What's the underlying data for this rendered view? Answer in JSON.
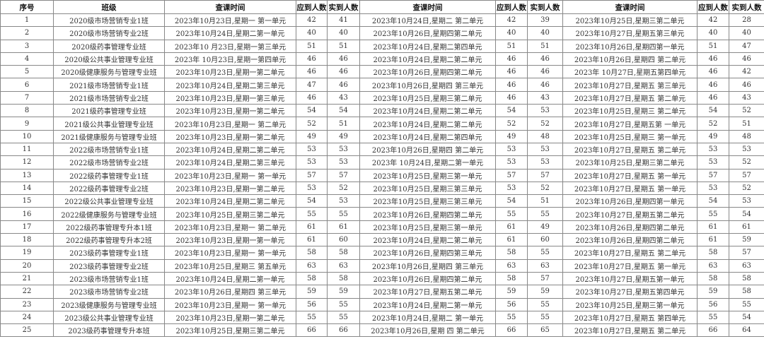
{
  "table": {
    "header": [
      "序号",
      "班级",
      "查课时间",
      "应到人数",
      "实到人数",
      "查课时间",
      "应到人数",
      "实到人数",
      "查课时间",
      "应到人数",
      "实到人数"
    ],
    "rows": [
      [
        1,
        "2020级市场营销专业1班",
        "2023年10月23日,星期一 第一单元",
        42,
        41,
        "2023年10月24日,星期二 第二单元",
        42,
        39,
        "2023年10月25日,星期三第二单元",
        42,
        28
      ],
      [
        2,
        "2020级市场营销专业2班",
        "2023年10月24日,星期二第一单元",
        40,
        40,
        "2023年10月26日,星期四第二单元",
        40,
        40,
        "2023年10月27日,星期五第三单元",
        40,
        40
      ],
      [
        3,
        "2020级药事管理专业班",
        "2023年10 月23日,星期一第三单元",
        51,
        51,
        "2023年10月24日,星期二第四单元",
        51,
        51,
        "2023年10月26日,星期四第一单元",
        51,
        47
      ],
      [
        4,
        "2020级公共事业管理专业班",
        "2023年 10月23日,星期一第四单元",
        46,
        46,
        "2023年10月24日,星期二第二单元",
        46,
        46,
        "2023年10月26日,星期四 第二单元",
        46,
        46
      ],
      [
        5,
        "2020级健康服务与管理专业班",
        "2023年10月23日,星期一第二单元",
        46,
        46,
        "2023年10月26日,星期四第二单元",
        46,
        46,
        "2023年 10月27日,星期五第四单元",
        46,
        42
      ],
      [
        6,
        "2021级市场营销专业1班",
        "2023年10月24日,星期二第三单元",
        47,
        46,
        "2023年10月26日,星期四 第三单元",
        46,
        46,
        "2023年10月27日,星期五 第三单元",
        46,
        46
      ],
      [
        7,
        "2021级市场营销专业2班",
        "2023年10月23日,星期一第三单元",
        46,
        43,
        "2023年10月25日,星期三第二单元",
        46,
        43,
        "2023年10月27日,星期五 第二单元",
        46,
        43
      ],
      [
        8,
        "2021级药事管理专业班",
        "2023年10月23日,星期一第二单元",
        54,
        54,
        "2023年10月24日,星期二第二单元",
        54,
        53,
        "2023年10月25日,星期三 第二单元",
        54,
        52
      ],
      [
        9,
        "2021级公共事业管理专业班",
        "2023年10月23日,星期一 第二单元",
        52,
        51,
        "2023年10月24日,星期二第二单元",
        52,
        52,
        "2023年10月27日,星期五第 一单元",
        52,
        51
      ],
      [
        10,
        "2021级健康服务与管理专业班",
        "2023年10月23日,星期一第二单元",
        49,
        49,
        "2023年10月24日,星期二第四单元",
        49,
        48,
        "2023年10月25日,星期三 第一单元",
        49,
        48
      ],
      [
        11,
        "2022级市场营销专业1班",
        "2023年10月24日,星期二第二单元",
        53,
        53,
        "2023年10月26日,星期四 第二单元",
        53,
        53,
        "2023年10月27日,星期五 第二单元",
        53,
        53
      ],
      [
        12,
        "2022级市场营销专业2班",
        "2023年10月24日,星期二第三单元",
        53,
        53,
        "2023年 10月24日,星期二第一单元",
        53,
        53,
        "2023年10月25日,星期三第二单元",
        53,
        52
      ],
      [
        13,
        "2022级药事管理专业1班",
        "2023年10月23日,星期一 第一单元",
        57,
        57,
        "2023年10月25日,星期三第一单元",
        57,
        57,
        "2023年10月27日,星期五 第一单元",
        57,
        57
      ],
      [
        14,
        "2022级药事管理专业2班",
        "2023年10月23日,星期一第二单元",
        53,
        52,
        "2023年10月25日,星期三第三单元",
        53,
        52,
        "2023年10月27日,星期五 第一单元",
        53,
        52
      ],
      [
        15,
        "2022级公共事业管理专业班",
        "2023年10月24日,星期二第二单元",
        54,
        53,
        "2023年10月25日,星期三第三单元",
        54,
        51,
        "2023年10月26日,星期四第一单元",
        54,
        53
      ],
      [
        16,
        "2022级健康服务与管理专业班",
        "2023年10月25日,星期三第二单元",
        55,
        55,
        "2023年10月26日,星期四第二单元",
        55,
        55,
        "2023年10月27日,星期五第二单元",
        55,
        54
      ],
      [
        17,
        "2022级药事管理专升本1班",
        "2023年10月23日,星期一 第二单元",
        61,
        61,
        "2023年10月25日,星期三第一单元",
        61,
        49,
        "2023年10月26日,星期四第二单元",
        61,
        61
      ],
      [
        18,
        "2022级药事管理专升本2班",
        "2023年10月23日,星期一第一单元",
        61,
        60,
        "2023年10月24日,星期二第二单元",
        61,
        60,
        "2023年10月26日,星期四第二单元",
        61,
        59
      ],
      [
        19,
        "2023级药事管理专业1班",
        "2023年10月23日,星期一 第一单元",
        58,
        58,
        "2023年10月26日,星期四第三单元",
        58,
        55,
        "2023年10月27日,星期五 第二单元",
        58,
        57
      ],
      [
        20,
        "2023级药事管理专业2班",
        "2023年10月25日,星期三 第五单元",
        63,
        63,
        "2023年10月26日,星期四 第三单元",
        63,
        63,
        "2023年10月27日,星期五 第一单元",
        63,
        63
      ],
      [
        21,
        "2023级市场营销专业1班",
        "2023年10月24日,星期二第一单元",
        58,
        58,
        "2023年10月26日,星期四第二单元",
        58,
        57,
        "2023年10月27日,星期五第一单元",
        58,
        58
      ],
      [
        22,
        "2023级市场营销专业2班",
        "2023年10月26日,星期四 第三单元",
        59,
        59,
        "2023年10月27日,星期五第二单元",
        59,
        59,
        "2023年10月27日,星期五第四单元",
        59,
        58
      ],
      [
        23,
        "2023级健康服务与管理专业班",
        "2023年10月23日,星期一 第一单元",
        56,
        55,
        "2023年10月24日,星期二第一单元",
        56,
        55,
        "2023年10月25日,星期三第一单元",
        56,
        55
      ],
      [
        24,
        "2023级公共事业管理专业班",
        "2023年10月23日,星期一第二单元",
        55,
        55,
        "2023年10月24日,星期二 第一单元",
        55,
        55,
        "2023年10月27日,星期五 第四单元",
        55,
        54
      ],
      [
        25,
        "2023级药事管理专升本班",
        "2023年10月25日,星期三第二单元",
        66,
        66,
        "2023年10月26日,星期 四 第二单元",
        66,
        65,
        "2023年10月27日,星期五 第二单元",
        66,
        64
      ]
    ]
  }
}
